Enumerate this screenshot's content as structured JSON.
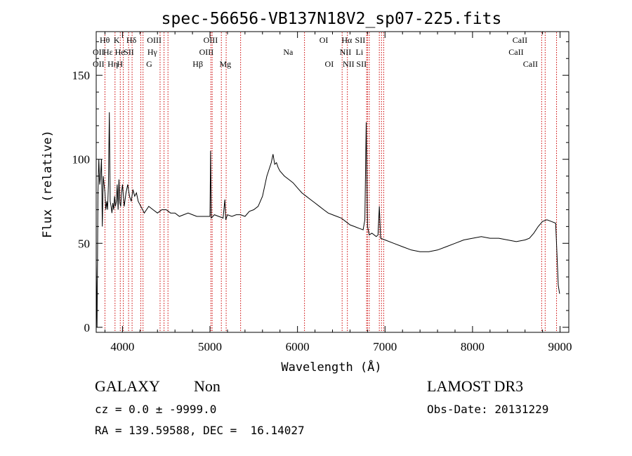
{
  "chart_data": {
    "type": "line",
    "title": "spec-56656-VB137N18V2_sp07-225.fits",
    "xlabel": "Wavelength (Å)",
    "ylabel": "Flux (relative)",
    "xlim": [
      3700,
      9100
    ],
    "ylim": [
      -3,
      176
    ],
    "xticks": [
      4000,
      5000,
      6000,
      7000,
      8000,
      9000
    ],
    "xtick_labels": [
      "4000",
      "5000",
      "6000",
      "7000",
      "8000",
      "9000"
    ],
    "yticks": [
      0,
      50,
      100,
      150
    ],
    "ytick_labels": [
      "0",
      "50",
      "100",
      "150"
    ],
    "grid": false,
    "line_color": "#000000",
    "marker_color": "#cc0000",
    "series": [
      {
        "x": [
          3700,
          3710,
          3720,
          3730,
          3740,
          3750,
          3760,
          3770,
          3780,
          3790,
          3800,
          3810,
          3820,
          3830,
          3840,
          3850,
          3860,
          3870,
          3880,
          3890,
          3900,
          3910,
          3920,
          3930,
          3940,
          3950,
          3960,
          3970,
          3980,
          3990,
          4000,
          4020,
          4040,
          4060,
          4080,
          4100,
          4120,
          4140,
          4160,
          4180,
          4200,
          4250,
          4300,
          4350,
          4400,
          4450,
          4500,
          4550,
          4600,
          4650,
          4700,
          4750,
          4800,
          4850,
          4900,
          4950,
          5000,
          5007,
          5015,
          5050,
          5100,
          5150,
          5170,
          5180,
          5200,
          5250,
          5300,
          5350,
          5400,
          5450,
          5500,
          5550,
          5600,
          5650,
          5700,
          5720,
          5740,
          5760,
          5780,
          5800,
          5850,
          5900,
          5950,
          6000,
          6050,
          6100,
          6150,
          6200,
          6250,
          6300,
          6350,
          6400,
          6450,
          6500,
          6550,
          6600,
          6650,
          6700,
          6750,
          6770,
          6785,
          6800,
          6820,
          6850,
          6900,
          6920,
          6935,
          6950,
          7000,
          7100,
          7200,
          7300,
          7400,
          7500,
          7600,
          7700,
          7800,
          7900,
          8000,
          8100,
          8200,
          8300,
          8400,
          8500,
          8600,
          8650,
          8700,
          8750,
          8800,
          8850,
          8900,
          8950,
          8980,
          8995
        ],
        "y": [
          38,
          0,
          80,
          100,
          85,
          90,
          100,
          60,
          90,
          85,
          80,
          70,
          75,
          70,
          85,
          128,
          75,
          72,
          68,
          74,
          70,
          78,
          72,
          75,
          85,
          70,
          88,
          74,
          72,
          80,
          85,
          72,
          80,
          85,
          78,
          75,
          82,
          78,
          80,
          75,
          73,
          68,
          72,
          70,
          68,
          70,
          70,
          68,
          68,
          66,
          67,
          68,
          67,
          66,
          66,
          66,
          66,
          105,
          65,
          67,
          66,
          65,
          76,
          64,
          67,
          66,
          67,
          67,
          66,
          69,
          70,
          72,
          78,
          90,
          98,
          103,
          97,
          98,
          95,
          93,
          90,
          88,
          86,
          83,
          80,
          78,
          76,
          74,
          72,
          70,
          68,
          67,
          66,
          65,
          63,
          61,
          60,
          59,
          58,
          64,
          122,
          60,
          55,
          56,
          54,
          55,
          72,
          53,
          52,
          50,
          48,
          46,
          45,
          45,
          46,
          48,
          50,
          52,
          53,
          54,
          53,
          53,
          52,
          51,
          52,
          53,
          56,
          60,
          63,
          64,
          63,
          62,
          25,
          20
        ]
      }
    ],
    "lines": [
      {
        "label": "OII",
        "x": 3727,
        "row": 2
      },
      {
        "label": "OII",
        "x": 3727,
        "row": 3
      },
      {
        "label": "Hθ",
        "x": 3798,
        "row": 1
      },
      {
        "label": "Hε",
        "x": 3835,
        "row": 2
      },
      {
        "label": "Hη",
        "x": 3889,
        "row": 3
      },
      {
        "label": "K",
        "x": 3934,
        "row": 1
      },
      {
        "label": "He",
        "x": 3970,
        "row": 2
      },
      {
        "label": "H",
        "x": 3970,
        "row": 3
      },
      {
        "label": "Hδ",
        "x": 4102,
        "row": 1
      },
      {
        "label": "SII",
        "x": 4073,
        "row": 2
      },
      {
        "label": "OIII",
        "x": 4363,
        "row": 1
      },
      {
        "label": "Hγ",
        "x": 4341,
        "row": 2
      },
      {
        "label": "G",
        "x": 4305,
        "row": 3
      },
      {
        "label": "Hβ",
        "x": 4861,
        "row": 3
      },
      {
        "label": "OIII",
        "x": 5007,
        "row": 1
      },
      {
        "label": "OIII",
        "x": 4959,
        "row": 2
      },
      {
        "label": "Mg",
        "x": 5175,
        "row": 3
      },
      {
        "label": "Na",
        "x": 5893,
        "row": 2
      },
      {
        "label": "OI",
        "x": 6300,
        "row": 1
      },
      {
        "label": "OI",
        "x": 6363,
        "row": 3
      },
      {
        "label": "Hα",
        "x": 6563,
        "row": 1
      },
      {
        "label": "NII",
        "x": 6548,
        "row": 2
      },
      {
        "label": "NII",
        "x": 6583,
        "row": 3
      },
      {
        "label": "SII",
        "x": 6716,
        "row": 1
      },
      {
        "label": "Li",
        "x": 6708,
        "row": 2
      },
      {
        "label": "SII",
        "x": 6731,
        "row": 3
      },
      {
        "label": "CaII",
        "x": 8542,
        "row": 1
      },
      {
        "label": "CaII",
        "x": 8498,
        "row": 2
      },
      {
        "label": "CaII",
        "x": 8662,
        "row": 3
      }
    ],
    "markers_x": [
      3800,
      3915,
      3975,
      4010,
      4070,
      4110,
      4210,
      4235,
      4430,
      4475,
      4520,
      5010,
      5025,
      5130,
      5185,
      5350,
      6080,
      6510,
      6570,
      6790,
      6800,
      6820,
      6935,
      6960,
      6985,
      8790,
      8830,
      8960
    ]
  },
  "info": {
    "object_class": "GALAXY",
    "subclass": "Non",
    "survey": "LAMOST DR3",
    "cz": "cz = 0.0 ± -9999.0",
    "obs_date": "Obs-Date: 20131229",
    "coords": "RA = 139.59588, DEC =  16.14027"
  }
}
